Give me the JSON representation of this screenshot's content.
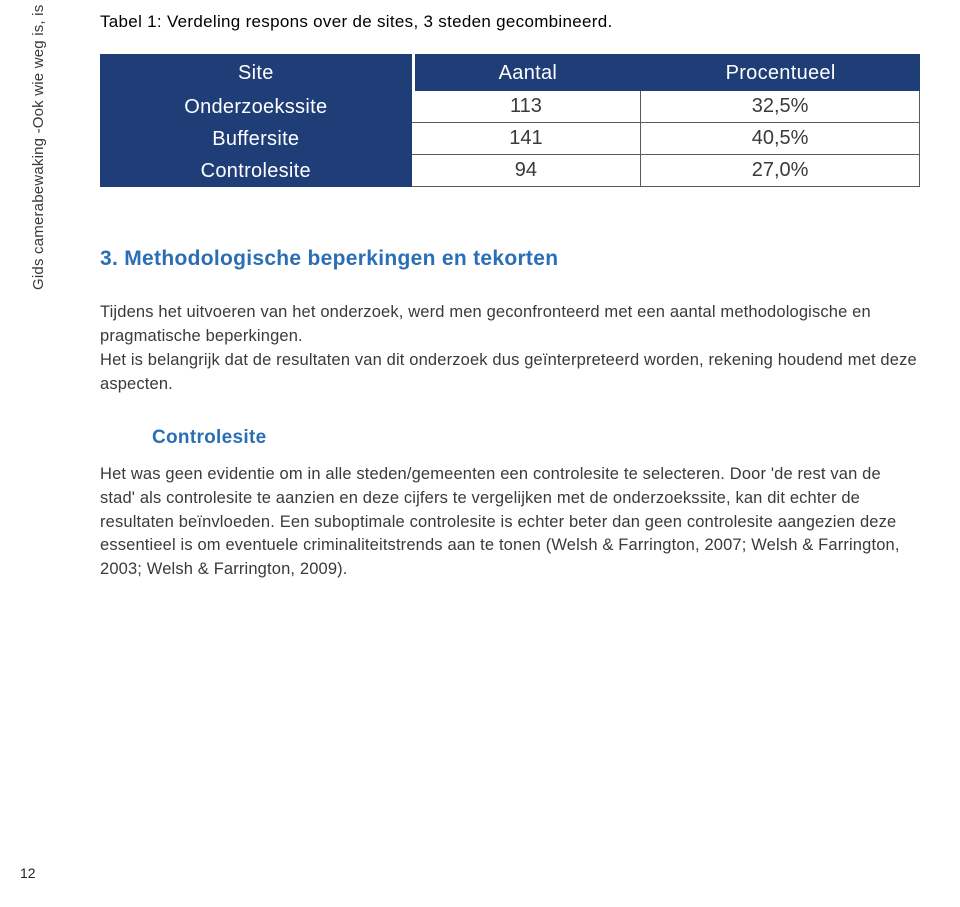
{
  "colors": {
    "header_bg": "#1f3e78",
    "accent": "#2a6fb5",
    "text_dark": "#3a3a3a",
    "side_text": "#3a3a3a",
    "rule": "#5a5a5a",
    "page_bg": "#ffffff"
  },
  "side_label": "Gids camerabewaking -Ook wie weg is, is gezien?",
  "caption": "Tabel 1: Verdeling respons over de sites, 3 steden gecombineerd.",
  "table": {
    "type": "table",
    "columns": [
      "Site",
      "Aantal",
      "Procentueel"
    ],
    "rows": [
      [
        "Onderzoekssite",
        "113",
        "32,5%"
      ],
      [
        "Buffersite",
        "141",
        "40,5%"
      ],
      [
        "Controlesite",
        "94",
        "27,0%"
      ]
    ],
    "header_fontsize": 20,
    "cell_fontsize": 20,
    "header_bg": "#1f3e78",
    "header_fg": "#ffffff",
    "cell_bg": "#ffffff",
    "cell_fg": "#3a3a3a",
    "border_color": "#5a5a5a"
  },
  "section": {
    "heading": "3. Methodologische beperkingen en tekorten",
    "para1": "Tijdens het uitvoeren van het onderzoek, werd men geconfronteerd met een aantal methodologische  en pragmatische beperkingen.",
    "para2": "Het is belangrijk dat de resultaten van dit onderzoek dus geïnterpreteerd worden, rekening houdend met deze aspecten.",
    "subhead": "Controlesite",
    "para3": "Het was geen evidentie om in alle steden/gemeenten een controlesite te selecteren. Door 'de rest van de stad' als controlesite te aanzien en deze cijfers te vergelijken met de onderzoekssite, kan dit echter de resultaten beïnvloeden. Een suboptimale controlesite is echter beter dan geen controlesite aangezien deze essentieel is om eventuele criminaliteitstrends aan te tonen (Welsh & Farrington, 2007; Welsh & Farrington, 2003; Welsh & Farrington, 2009)."
  },
  "page_number": "12"
}
